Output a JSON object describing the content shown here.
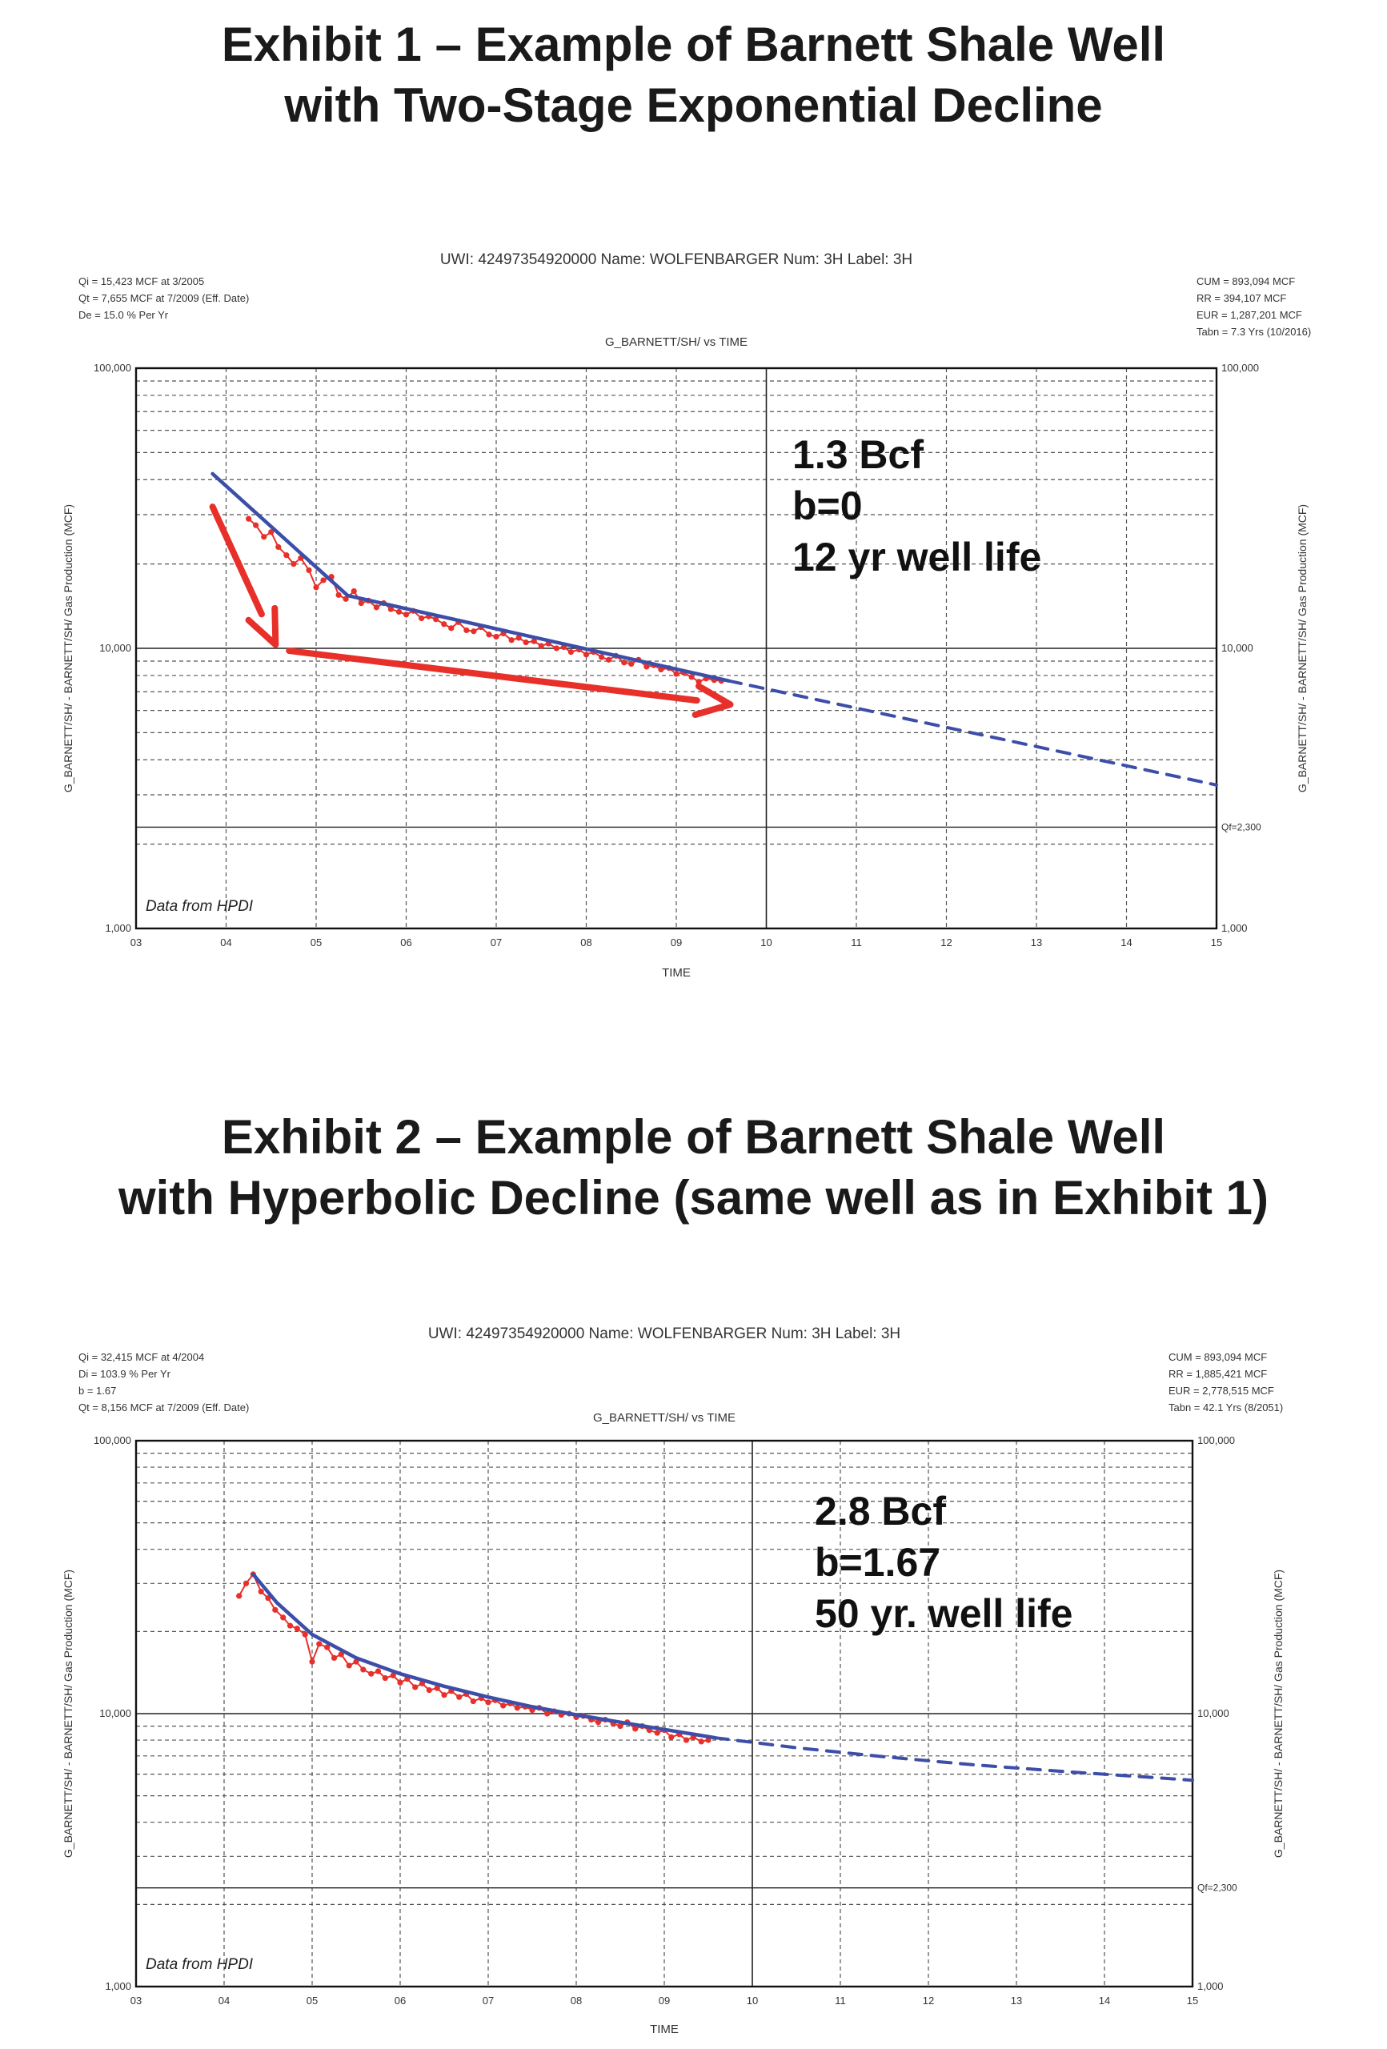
{
  "exhibits": [
    {
      "title_line1": "Exhibit 1 – Example of Barnett Shale Well",
      "title_line2": "with Two-Stage Exponential Decline"
    },
    {
      "title_line1": "Exhibit 2 – Example of Barnett Shale Well",
      "title_line2": "with Hyperbolic Decline (same well as in Exhibit 1)"
    }
  ],
  "chart_data": [
    {
      "type": "line",
      "header": "UWI: 42497354920000  Name: WOLFENBARGER  Num: 3H  Label: 3H",
      "title": "G_BARNETT/SH/ vs TIME",
      "left_info": [
        "Qi = 15,423 MCF at 3/2005",
        "Qt = 7,655 MCF at 7/2009 (Eff. Date)",
        "De = 15.0 % Per Yr"
      ],
      "right_info": [
        "CUM = 893,094 MCF",
        "RR = 394,107 MCF",
        "EUR = 1,287,201 MCF",
        "Tabn = 7.3 Yrs (10/2016)"
      ],
      "ylabel": "G_BARNETT/SH/ - BARNETT/SH/ Gas Production (MCF)",
      "xlabel": "TIME",
      "x_ticks": [
        "03",
        "04",
        "05",
        "06",
        "07",
        "08",
        "09",
        "10",
        "11",
        "12",
        "13",
        "14",
        "15"
      ],
      "y_ticks": [
        "1,000",
        "10,000",
        "100,000"
      ],
      "y_scale": "log",
      "xlim": [
        2003,
        2015
      ],
      "ylim": [
        1000,
        100000
      ],
      "qf_label": "Qf=2,300",
      "qf_value": 2300,
      "source_note": "Data from HPDI",
      "annotation": [
        "1.3 Bcf",
        "b=0",
        "12 yr well life"
      ],
      "arrows": [
        {
          "from": [
            2003.85,
            32000
          ],
          "to": [
            2004.55,
            10300
          ]
        },
        {
          "from": [
            2004.7,
            9800
          ],
          "to": [
            2009.6,
            6300
          ]
        }
      ],
      "series": [
        {
          "name": "Production",
          "color": "#e8302a",
          "x": [
            2004.25,
            2004.33,
            2004.42,
            2004.5,
            2004.58,
            2004.67,
            2004.75,
            2004.83,
            2004.92,
            2005.0,
            2005.08,
            2005.17,
            2005.25,
            2005.33,
            2005.42,
            2005.5,
            2005.58,
            2005.67,
            2005.75,
            2005.83,
            2005.92,
            2006.0,
            2006.08,
            2006.17,
            2006.25,
            2006.33,
            2006.42,
            2006.5,
            2006.58,
            2006.67,
            2006.75,
            2006.83,
            2006.92,
            2007.0,
            2007.08,
            2007.17,
            2007.25,
            2007.33,
            2007.42,
            2007.5,
            2007.58,
            2007.67,
            2007.75,
            2007.83,
            2007.92,
            2008.0,
            2008.08,
            2008.17,
            2008.25,
            2008.33,
            2008.42,
            2008.5,
            2008.58,
            2008.67,
            2008.75,
            2008.83,
            2008.92,
            2009.0,
            2009.08,
            2009.17,
            2009.25,
            2009.33,
            2009.42,
            2009.5
          ],
          "y": [
            29000,
            27500,
            25000,
            26000,
            23000,
            21500,
            20000,
            21000,
            19000,
            16500,
            17500,
            18000,
            15500,
            15000,
            16000,
            14500,
            14800,
            14000,
            14500,
            13800,
            13500,
            13200,
            13600,
            12800,
            13000,
            12700,
            12200,
            11800,
            12400,
            11600,
            11500,
            11900,
            11200,
            11000,
            11300,
            10700,
            10900,
            10500,
            10600,
            10200,
            10400,
            10000,
            10100,
            9700,
            9900,
            9500,
            9700,
            9300,
            9100,
            9400,
            8900,
            8800,
            9100,
            8600,
            8700,
            8400,
            8500,
            8100,
            8200,
            7900,
            7600,
            7800,
            7700,
            7650
          ]
        },
        {
          "name": "Fit (stage 1)",
          "color": "#3d4ea8",
          "x": [
            2003.85,
            2005.35
          ],
          "y": [
            42000,
            15423
          ]
        },
        {
          "name": "Fit (stage 2)",
          "color": "#3d4ea8",
          "x": [
            2005.35,
            2009.58
          ],
          "y": [
            15423,
            7655
          ]
        },
        {
          "name": "Forecast",
          "color": "#3d4ea8",
          "dashed": true,
          "x": [
            2009.58,
            2015.0
          ],
          "y": [
            7655,
            3250
          ]
        }
      ]
    },
    {
      "type": "line",
      "header": "UWI: 42497354920000  Name: WOLFENBARGER  Num: 3H  Label: 3H",
      "title": "G_BARNETT/SH/ vs TIME",
      "left_info": [
        "Qi = 32,415 MCF at 4/2004",
        "Di = 103.9 % Per Yr",
        "b = 1.67",
        "Qt = 8,156 MCF at 7/2009 (Eff. Date)"
      ],
      "right_info": [
        "CUM = 893,094 MCF",
        "RR = 1,885,421 MCF",
        "EUR = 2,778,515 MCF",
        "Tabn = 42.1 Yrs (8/2051)"
      ],
      "ylabel": "G_BARNETT/SH/ - BARNETT/SH/ Gas Production (MCF)",
      "xlabel": "TIME",
      "x_ticks": [
        "03",
        "04",
        "05",
        "06",
        "07",
        "08",
        "09",
        "10",
        "11",
        "12",
        "13",
        "14",
        "15"
      ],
      "y_ticks": [
        "1,000",
        "10,000",
        "100,000"
      ],
      "y_scale": "log",
      "xlim": [
        2003,
        2015
      ],
      "ylim": [
        1000,
        100000
      ],
      "qf_label": "Qf=2,300",
      "qf_value": 2300,
      "source_note": "Data from HPDI",
      "annotation": [
        "2.8 Bcf",
        "b=1.67",
        "50 yr. well life"
      ],
      "arrows": [],
      "series": [
        {
          "name": "Production",
          "color": "#e8302a",
          "x": [
            2004.17,
            2004.25,
            2004.33,
            2004.42,
            2004.5,
            2004.58,
            2004.67,
            2004.75,
            2004.83,
            2004.92,
            2005.0,
            2005.08,
            2005.17,
            2005.25,
            2005.33,
            2005.42,
            2005.5,
            2005.58,
            2005.67,
            2005.75,
            2005.83,
            2005.92,
            2006.0,
            2006.08,
            2006.17,
            2006.25,
            2006.33,
            2006.42,
            2006.5,
            2006.58,
            2006.67,
            2006.75,
            2006.83,
            2006.92,
            2007.0,
            2007.08,
            2007.17,
            2007.25,
            2007.33,
            2007.42,
            2007.5,
            2007.58,
            2007.67,
            2007.75,
            2007.83,
            2007.92,
            2008.0,
            2008.08,
            2008.17,
            2008.25,
            2008.33,
            2008.42,
            2008.5,
            2008.58,
            2008.67,
            2008.75,
            2008.83,
            2008.92,
            2009.0,
            2009.08,
            2009.17,
            2009.25,
            2009.33,
            2009.42,
            2009.5
          ],
          "y": [
            27000,
            30000,
            32400,
            28000,
            26500,
            24000,
            22500,
            21000,
            20500,
            19500,
            15500,
            18000,
            17500,
            16000,
            16500,
            15000,
            15500,
            14500,
            14000,
            14300,
            13500,
            13800,
            13000,
            13400,
            12500,
            12900,
            12200,
            12400,
            11700,
            12100,
            11500,
            11800,
            11100,
            11400,
            11000,
            11200,
            10700,
            10900,
            10500,
            10600,
            10300,
            10500,
            10000,
            10200,
            9900,
            10000,
            9700,
            9800,
            9500,
            9300,
            9500,
            9200,
            9000,
            9300,
            8800,
            9000,
            8700,
            8500,
            8700,
            8200,
            8400,
            8000,
            8200,
            7900,
            8000
          ]
        },
        {
          "name": "Fit",
          "color": "#3d4ea8",
          "x": [
            2004.33,
            2004.6,
            2005.0,
            2005.5,
            2006.0,
            2006.5,
            2007.0,
            2007.5,
            2008.0,
            2008.5,
            2009.0,
            2009.58
          ],
          "y": [
            32415,
            25500,
            19500,
            16000,
            14000,
            12600,
            11500,
            10600,
            9900,
            9300,
            8750,
            8156
          ]
        },
        {
          "name": "Forecast",
          "color": "#3d4ea8",
          "dashed": true,
          "x": [
            2009.58,
            2010.5,
            2011.5,
            2012.5,
            2013.5,
            2014.5,
            2015.0
          ],
          "y": [
            8156,
            7500,
            6950,
            6500,
            6150,
            5850,
            5700
          ]
        }
      ]
    }
  ]
}
